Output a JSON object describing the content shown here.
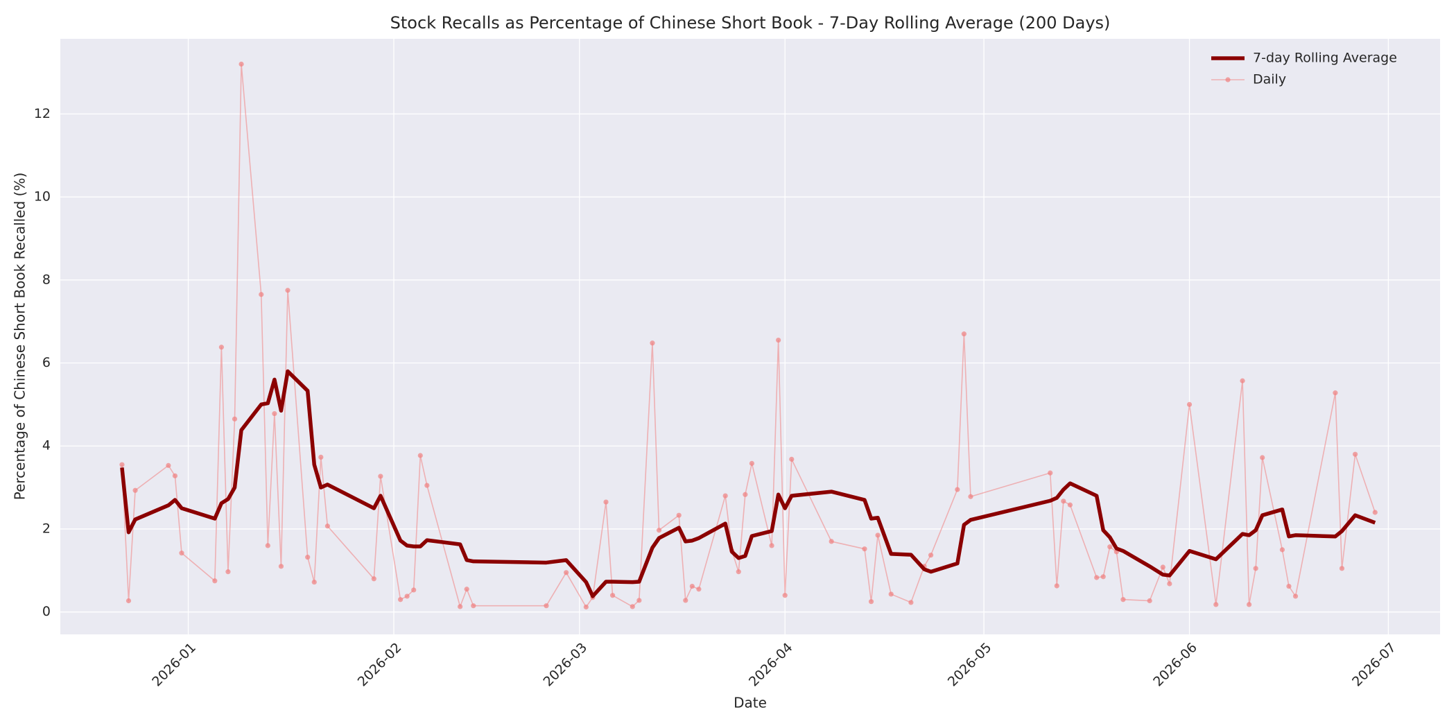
{
  "chart_data": {
    "type": "line",
    "title": "Stock Recalls as Percentage of Chinese Short Book - 7-Day Rolling Average (200 Days)",
    "xlabel": "Date",
    "ylabel": "Percentage of Chinese Short Book Recalled (%)",
    "x": [
      -10,
      -9,
      -8,
      -3,
      -2,
      -1,
      4,
      5,
      6,
      7,
      8,
      11,
      12,
      13,
      14,
      15,
      18,
      19,
      20,
      21,
      28,
      29,
      32,
      33,
      34,
      35,
      36,
      41,
      42,
      43,
      54,
      57,
      60,
      61,
      63,
      64,
      67,
      68,
      70,
      71,
      74,
      75,
      76,
      77,
      81,
      82,
      83,
      84,
      85,
      88,
      89,
      90,
      91,
      97,
      102,
      103,
      104,
      106,
      109,
      111,
      112,
      116,
      117,
      118,
      130,
      131,
      132,
      133,
      137,
      138,
      139,
      140,
      141,
      145,
      147,
      148,
      151,
      155,
      159,
      160,
      161,
      162,
      165,
      166,
      167,
      173,
      174,
      176,
      179
    ],
    "series": [
      {
        "name": "7-day Rolling Average",
        "color": "#8b0000",
        "values": [
          3.48,
          1.92,
          2.23,
          2.57,
          2.7,
          2.5,
          2.25,
          2.62,
          2.72,
          3.0,
          4.38,
          5.0,
          5.03,
          5.6,
          4.85,
          5.8,
          5.33,
          3.55,
          3.0,
          3.07,
          2.5,
          2.8,
          1.72,
          1.6,
          1.58,
          1.58,
          1.73,
          1.63,
          1.25,
          1.22,
          1.19,
          1.25,
          0.72,
          0.38,
          0.73,
          0.73,
          0.72,
          0.73,
          1.55,
          1.78,
          2.03,
          1.7,
          1.72,
          1.78,
          2.13,
          1.45,
          1.3,
          1.35,
          1.83,
          1.95,
          2.83,
          2.5,
          2.8,
          2.9,
          2.7,
          2.25,
          2.27,
          1.4,
          1.38,
          1.03,
          0.97,
          1.17,
          2.1,
          2.22,
          2.68,
          2.75,
          2.95,
          3.1,
          2.8,
          1.97,
          1.8,
          1.53,
          1.47,
          1.1,
          0.9,
          0.88,
          1.47,
          1.27,
          1.88,
          1.85,
          1.97,
          2.33,
          2.47,
          1.82,
          1.85,
          1.82,
          1.95,
          2.33,
          2.15
        ]
      },
      {
        "name": "Daily",
        "color": "#f08080",
        "values": [
          3.55,
          0.27,
          2.93,
          3.53,
          3.28,
          1.42,
          0.75,
          6.38,
          0.97,
          4.65,
          13.2,
          7.65,
          1.6,
          4.78,
          1.1,
          7.75,
          1.32,
          0.72,
          3.73,
          2.07,
          0.8,
          3.27,
          0.3,
          0.38,
          0.53,
          3.77,
          3.05,
          0.13,
          0.55,
          0.15,
          0.15,
          0.95,
          0.12,
          0.35,
          2.65,
          0.4,
          0.13,
          0.28,
          6.48,
          1.97,
          2.33,
          0.28,
          0.62,
          0.55,
          2.8,
          1.47,
          0.97,
          2.83,
          3.58,
          1.6,
          6.55,
          0.4,
          3.68,
          1.7,
          1.52,
          0.25,
          1.85,
          0.43,
          0.23,
          1.1,
          1.37,
          2.95,
          6.7,
          2.78,
          3.35,
          0.63,
          2.67,
          2.58,
          0.83,
          0.85,
          1.57,
          1.45,
          0.3,
          0.27,
          1.08,
          0.68,
          5.0,
          0.18,
          5.57,
          0.18,
          1.05,
          3.72,
          1.5,
          0.62,
          0.38,
          5.28,
          1.05,
          3.8,
          2.4
        ]
      }
    ],
    "xlim": [
      -19.3,
      188.8
    ],
    "xticks": [
      {
        "value": 0,
        "label": "2026-01"
      },
      {
        "value": 31,
        "label": "2026-02"
      },
      {
        "value": 59,
        "label": "2026-03"
      },
      {
        "value": 90,
        "label": "2026-04"
      },
      {
        "value": 120,
        "label": "2026-05"
      },
      {
        "value": 151,
        "label": "2026-06"
      },
      {
        "value": 181,
        "label": "2026-07"
      }
    ],
    "ylim": [
      -0.54,
      13.81
    ],
    "yticks": [
      0,
      2,
      4,
      6,
      8,
      10,
      12
    ],
    "grid": true,
    "legend": "upper right"
  }
}
